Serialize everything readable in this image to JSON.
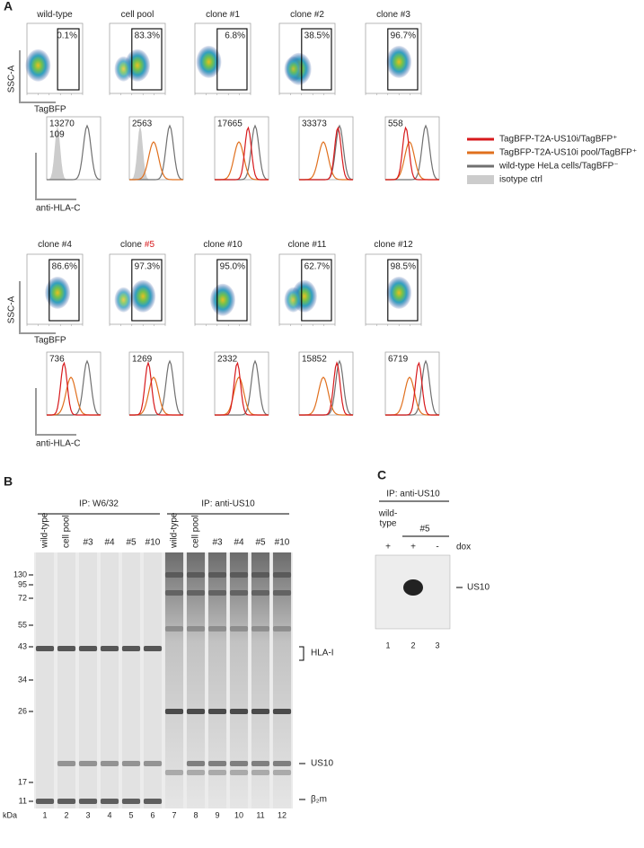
{
  "panel_a": {
    "label": "A",
    "y_axis_label": "SSC-A",
    "x_axis_label": "TagBFP",
    "hist_axis_label": "anti-HLA-C",
    "rows": [
      {
        "plots": [
          {
            "title": "wild-type",
            "gate": "0.1%",
            "mfi": [
              13270,
              109
            ]
          },
          {
            "title": "cell pool",
            "gate": "83.3%",
            "mfi": [
              2563
            ]
          },
          {
            "title": "clone #1",
            "gate": "6.8%",
            "mfi": [
              17665
            ]
          },
          {
            "title": "clone #2",
            "gate": "38.5%",
            "mfi": [
              33373
            ]
          },
          {
            "title": "clone #3",
            "gate": "96.7%",
            "mfi": [
              558
            ]
          }
        ]
      },
      {
        "plots": [
          {
            "title": "clone #4",
            "gate": "86.6%",
            "mfi": [
              736
            ]
          },
          {
            "title": "clone",
            "title_highlight": "#5",
            "gate": "97.3%",
            "mfi": [
              1269
            ]
          },
          {
            "title": "clone #10",
            "gate": "95.0%",
            "mfi": [
              2332
            ]
          },
          {
            "title": "clone #11",
            "gate": "62.7%",
            "mfi": [
              15852
            ]
          },
          {
            "title": "clone #12",
            "gate": "98.5%",
            "mfi": [
              6719
            ]
          }
        ]
      }
    ],
    "legend": [
      {
        "text": "TagBFP-T2A-US10i/TagBFP⁺",
        "color": "#d7191c"
      },
      {
        "text": "TagBFP-T2A-US10i pool/TagBFP⁺",
        "color": "#e0701e"
      },
      {
        "text": "wild-type HeLa cells/TagBFP⁻",
        "color": "#707070"
      },
      {
        "text": "isotype ctrl",
        "color": "#cccccc"
      }
    ]
  },
  "panel_b": {
    "label": "B",
    "groups": [
      "IP: W6/32",
      "IP: anti-US10"
    ],
    "lanes": [
      "wild-type",
      "cell pool",
      "#3",
      "#4",
      "#5",
      "#10",
      "wild-type",
      "cell pool",
      "#3",
      "#4",
      "#5",
      "#10"
    ],
    "lane_numbers": [
      1,
      2,
      3,
      4,
      5,
      6,
      7,
      8,
      9,
      10,
      11,
      12
    ],
    "markers": [
      130,
      95,
      72,
      55,
      43,
      34,
      26,
      17,
      11
    ],
    "unit": "kDa",
    "bands": [
      "HLA-I",
      "US10",
      "β₂m"
    ]
  },
  "panel_c": {
    "label": "C",
    "group": "IP: anti-US10",
    "wild_type": [
      "wild-",
      "type"
    ],
    "clone": "#5",
    "dox_signs": [
      "+",
      "+",
      "-"
    ],
    "dox": "dox",
    "band": "US10",
    "lane_numbers": [
      1,
      2,
      3
    ]
  }
}
